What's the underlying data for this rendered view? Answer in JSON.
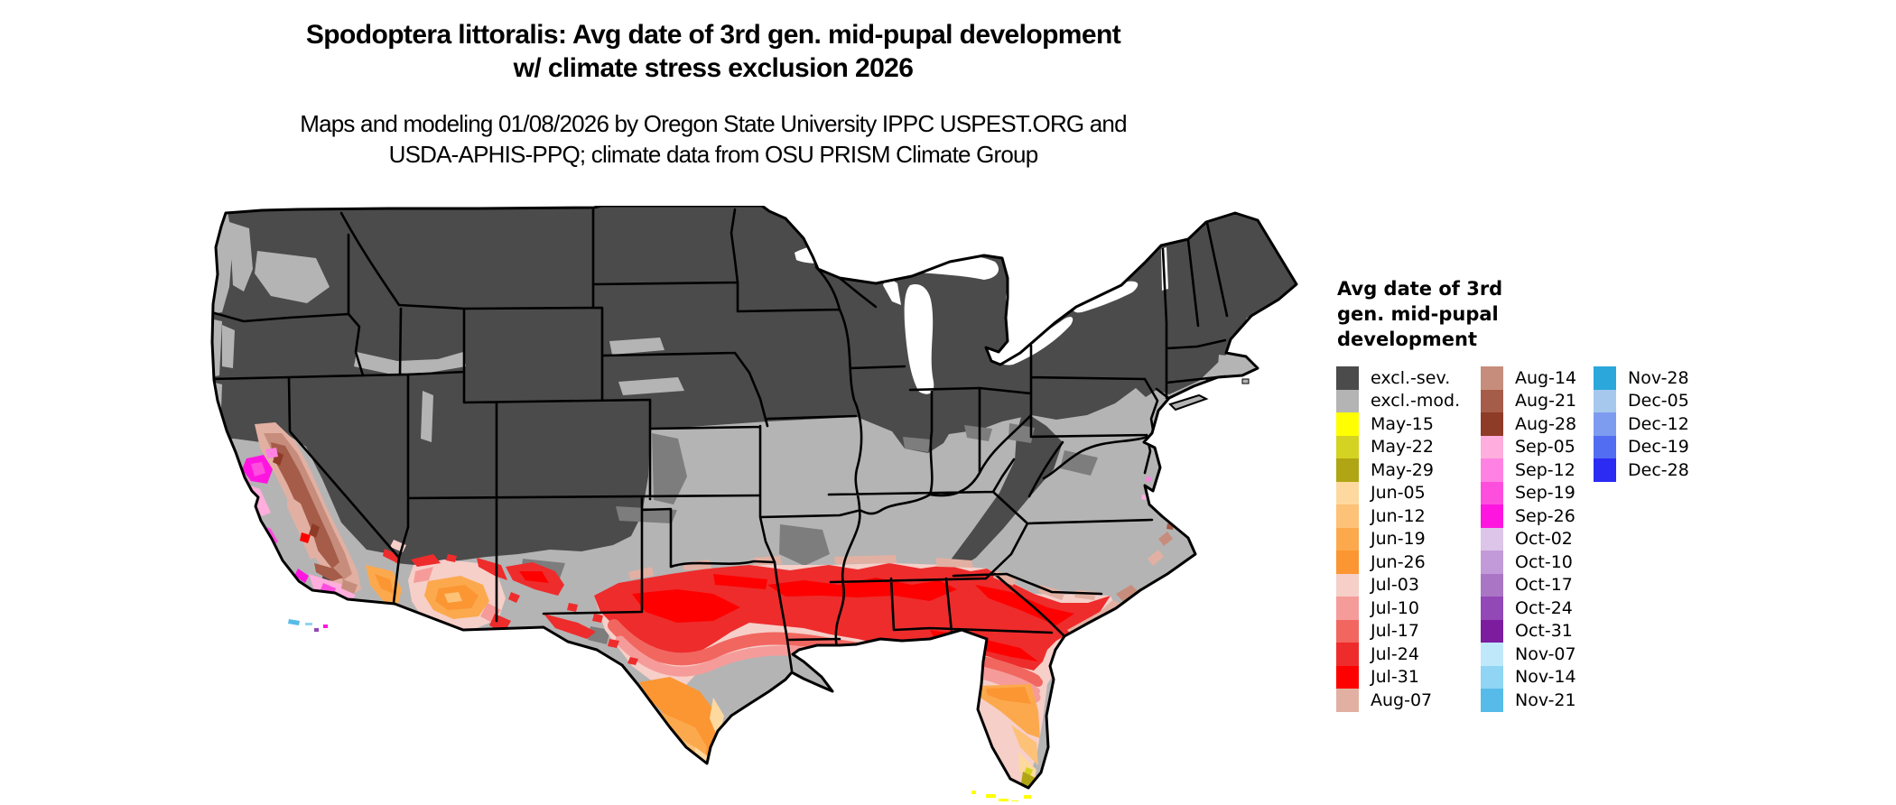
{
  "title": {
    "line1": "Spodoptera littoralis: Avg date of 3rd gen. mid-pupal development",
    "line2": "w/ climate stress exclusion 2026"
  },
  "subtitle": {
    "line1": "Maps and modeling 01/08/2026 by Oregon State University IPPC USPEST.ORG and",
    "line2": "USDA-APHIS-PPQ; climate data from OSU PRISM Climate Group"
  },
  "map": {
    "region": "Contiguous United States"
  },
  "legend": {
    "title_lines": [
      "Avg date of 3rd",
      "gen. mid-pupal",
      "development"
    ],
    "columns": [
      [
        {
          "label": "excl.-sev.",
          "key": "excl_sev"
        },
        {
          "label": "excl.-mod.",
          "key": "excl_mod"
        },
        {
          "label": "May-15",
          "key": "may15"
        },
        {
          "label": "May-22",
          "key": "may22"
        },
        {
          "label": "May-29",
          "key": "may29"
        },
        {
          "label": "Jun-05",
          "key": "jun05"
        },
        {
          "label": "Jun-12",
          "key": "jun12"
        },
        {
          "label": "Jun-19",
          "key": "jun19"
        },
        {
          "label": "Jun-26",
          "key": "jun26"
        },
        {
          "label": "Jul-03",
          "key": "jul03"
        },
        {
          "label": "Jul-10",
          "key": "jul10"
        },
        {
          "label": "Jul-17",
          "key": "jul17"
        },
        {
          "label": "Jul-24",
          "key": "jul24"
        },
        {
          "label": "Jul-31",
          "key": "jul31"
        },
        {
          "label": "Aug-07",
          "key": "aug07"
        }
      ],
      [
        {
          "label": "Aug-14",
          "key": "aug14"
        },
        {
          "label": "Aug-21",
          "key": "aug21"
        },
        {
          "label": "Aug-28",
          "key": "aug28"
        },
        {
          "label": "Sep-05",
          "key": "sep05"
        },
        {
          "label": "Sep-12",
          "key": "sep12"
        },
        {
          "label": "Sep-19",
          "key": "sep19"
        },
        {
          "label": "Sep-26",
          "key": "sep26"
        },
        {
          "label": "Oct-02",
          "key": "oct02"
        },
        {
          "label": "Oct-10",
          "key": "oct10"
        },
        {
          "label": "Oct-17",
          "key": "oct17"
        },
        {
          "label": "Oct-24",
          "key": "oct24"
        },
        {
          "label": "Oct-31",
          "key": "oct31"
        },
        {
          "label": "Nov-07",
          "key": "nov07"
        },
        {
          "label": "Nov-14",
          "key": "nov14"
        },
        {
          "label": "Nov-21",
          "key": "nov21"
        }
      ],
      [
        {
          "label": "Nov-28",
          "key": "nov28"
        },
        {
          "label": "Dec-05",
          "key": "dec05"
        },
        {
          "label": "Dec-12",
          "key": "dec12"
        },
        {
          "label": "Dec-19",
          "key": "dec19"
        },
        {
          "label": "Dec-28",
          "key": "dec28"
        }
      ]
    ]
  },
  "palette": {
    "excl_sev": "#4b4b4b",
    "excl_mod": "#b4b4b4",
    "mid_gray": "#7d7d7d",
    "may15": "#ffff00",
    "may22": "#d4d321",
    "may29": "#b0a513",
    "jun05": "#fdd9a0",
    "jun12": "#fdc177",
    "jun19": "#fca94e",
    "jun26": "#fb9632",
    "jul03": "#f6cfc9",
    "jul10": "#f59c9a",
    "jul17": "#f26660",
    "jul24": "#ee2c2c",
    "jul31": "#fe0000",
    "aug07": "#e2b0a2",
    "aug14": "#c78d7c",
    "aug21": "#a55c49",
    "aug28": "#8e3b28",
    "sep05": "#ffaedd",
    "sep12": "#ff82e3",
    "sep19": "#fe4ede",
    "sep26": "#fe16e0",
    "oct02": "#dcc5e8",
    "oct10": "#c39ad9",
    "oct17": "#aa75c5",
    "oct24": "#9348b7",
    "oct31": "#7c1d9f",
    "nov07": "#bfe9fa",
    "nov14": "#90d5f3",
    "nov21": "#57bbe9",
    "nov28": "#2ba7dc",
    "dec05": "#a6c8ec",
    "dec12": "#7e9cef",
    "dec19": "#526df1",
    "dec28": "#2b2bf4",
    "white": "#ffffff",
    "border": "#000000"
  }
}
